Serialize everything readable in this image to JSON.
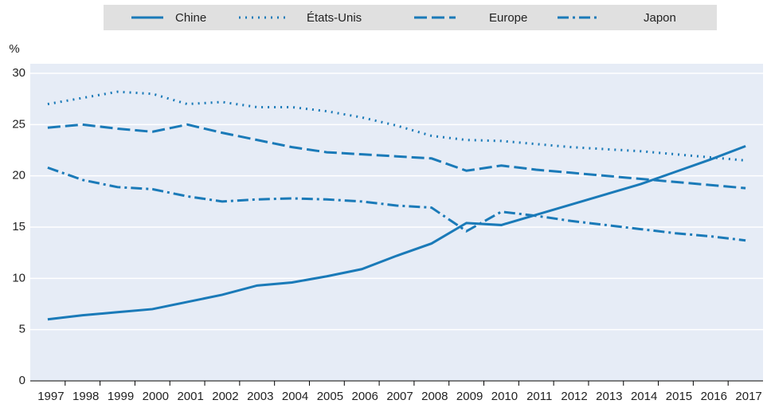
{
  "chart_data": {
    "type": "line",
    "y_label": "%",
    "categories": [
      "1997",
      "1998",
      "1999",
      "2000",
      "2001",
      "2002",
      "2003",
      "2004",
      "2005",
      "2006",
      "2007",
      "2008",
      "2009",
      "2010",
      "2011",
      "2012",
      "2013",
      "2014",
      "2015",
      "2016",
      "2017"
    ],
    "series": [
      {
        "name": "Chine",
        "color": "#1a7ab8",
        "linestyle": "solid",
        "values": [
          6.0,
          6.4,
          6.7,
          7.0,
          7.7,
          8.4,
          9.3,
          9.6,
          10.2,
          10.9,
          12.2,
          13.4,
          15.4,
          15.2,
          16.2,
          17.2,
          18.2,
          19.2,
          20.4,
          21.6,
          22.9
        ]
      },
      {
        "name": "États-Unis",
        "color": "#1a7ab8",
        "linestyle": "dotted",
        "values": [
          27.0,
          27.6,
          28.2,
          28.0,
          27.0,
          27.2,
          26.7,
          26.7,
          26.3,
          25.7,
          24.9,
          23.9,
          23.5,
          23.4,
          23.1,
          22.8,
          22.6,
          22.4,
          22.1,
          21.8,
          21.5
        ]
      },
      {
        "name": "Europe",
        "color": "#1a7ab8",
        "linestyle": "dashed",
        "values": [
          24.7,
          25.0,
          24.6,
          24.3,
          25.0,
          24.2,
          23.5,
          22.8,
          22.3,
          22.1,
          21.9,
          21.7,
          20.5,
          21.0,
          20.6,
          20.3,
          20.0,
          19.7,
          19.4,
          19.1,
          18.8
        ]
      },
      {
        "name": "Japon",
        "color": "#1a7ab8",
        "linestyle": "dashdot",
        "values": [
          20.8,
          19.6,
          18.9,
          18.7,
          18.0,
          17.5,
          17.7,
          17.8,
          17.7,
          17.5,
          17.1,
          16.9,
          14.6,
          16.5,
          16.1,
          15.6,
          15.2,
          14.8,
          14.4,
          14.1,
          13.7
        ]
      }
    ],
    "ylim": [
      0,
      30
    ],
    "yticks": [
      0,
      5,
      10,
      15,
      20,
      25,
      30
    ],
    "grid": true,
    "legend": "top"
  }
}
